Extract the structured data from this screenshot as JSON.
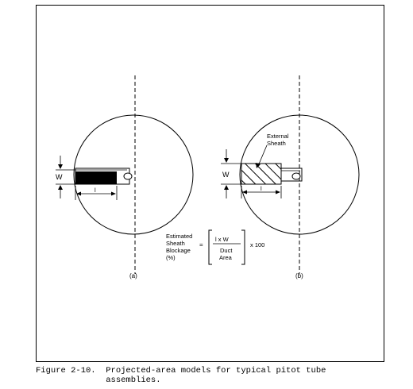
{
  "figure": {
    "panel_a": {
      "label": "(a)",
      "width_symbol": "W",
      "length_symbol": "l"
    },
    "panel_b": {
      "label": "(b)",
      "width_symbol": "W",
      "length_symbol": "l",
      "sheath_label_1": "External",
      "sheath_label_2": "Sheath"
    },
    "formula": {
      "lhs_1": "Estimated",
      "lhs_2": "Sheath",
      "lhs_3": "Blockage",
      "lhs_4": "(%)",
      "equals": "=",
      "numerator": "l x W",
      "denominator_1": "Duct",
      "denominator_2": "Area",
      "multiplier": "x 100"
    }
  },
  "caption": {
    "line1": "Figure 2-10.  Projected-area models for typical pitot tube",
    "line2": "              assemblies."
  }
}
